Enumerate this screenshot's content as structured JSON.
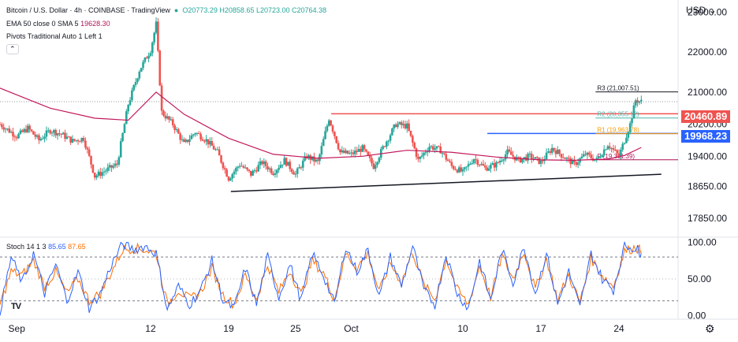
{
  "header": {
    "symbol": "Bitcoin / U.S. Dollar · 4h · COINBASE · TradingView",
    "ohlc": "O20773.29 H20858.65 L20723.00 C20764.38",
    "ema": "EMA 50 close 0 SMA 5",
    "ema_value": "19628.30",
    "pivots": "Pivots Traditional Auto 1 Left 1",
    "stoch_label": "Stoch 14 1 3",
    "stoch_k": "85.65",
    "stoch_d": "87.65",
    "currency": "USD",
    "logo": "TV"
  },
  "colors": {
    "up": "#26a69a",
    "down": "#ef5350",
    "ema": "#c2185b",
    "r2": "#ef5350",
    "r1": "#2962ff",
    "stoch_k": "#2962ff",
    "stoch_d": "#ff6d00"
  },
  "chart_data": [
    {
      "type": "candlestick",
      "title": "Bitcoin / U.S. Dollar · 4h · COINBASE",
      "ylim": [
        17400,
        23300
      ],
      "y_ticks": [
        "23000.00",
        "22000.00",
        "21000.00",
        "20200.00",
        "19400.00",
        "18650.00",
        "17850.00"
      ],
      "y_tick_values": [
        23000,
        22000,
        21000,
        20200,
        19400,
        18650,
        17850
      ],
      "x_ticks": [
        "Sep",
        "12",
        "19",
        "25",
        "Oct",
        "10",
        "17",
        "24"
      ],
      "x_tick_days": [
        0,
        12,
        19,
        25,
        30,
        40,
        47,
        54
      ],
      "x_range_days": [
        -1.5,
        59.3
      ],
      "pivot_levels": [
        {
          "label": "R3",
          "value": "21,007.51",
          "y": 21007.51,
          "from": 51.9
        },
        {
          "label": "R2",
          "value": "20,355.12",
          "y": 20355.12,
          "from": 51.9
        },
        {
          "label": "R1",
          "value": "19,963.78",
          "y": 19963.78,
          "from": 51.9
        },
        {
          "label": "P",
          "value": "19,311.39",
          "y": 19311.39,
          "from": 51.9
        }
      ],
      "price_badges": [
        {
          "value": "20460.89",
          "y": 20460.89,
          "color": "#ef5350"
        },
        {
          "value": "19968.23",
          "y": 19968.23,
          "color": "#2962ff"
        }
      ],
      "horizontal_lines": [
        {
          "y": 20460,
          "from": 28.2,
          "to": 59.3,
          "color": "#ef5350"
        },
        {
          "y": 19968,
          "from": 42.2,
          "to": 59.3,
          "color": "#2962ff"
        }
      ],
      "dotted_price_line": 20764,
      "trendline": {
        "from": [
          19.2,
          18520
        ],
        "to": [
          57.8,
          18950
        ]
      },
      "path_days": [
        -1.5,
        0,
        1,
        2,
        3,
        4,
        5,
        6,
        7,
        8,
        9,
        10,
        11,
        12,
        12.5,
        13,
        14,
        15,
        16,
        17,
        18,
        19,
        20,
        21,
        22,
        23,
        24,
        25,
        26,
        27,
        28,
        29,
        30,
        31,
        32,
        33,
        34,
        35,
        36,
        37,
        38,
        39,
        40,
        41,
        42,
        43,
        44,
        45,
        46,
        47,
        48,
        49,
        50,
        51,
        52,
        53,
        54,
        55,
        55.5,
        56
      ],
      "path_close": [
        20200,
        19900,
        20100,
        19800,
        20050,
        19950,
        19780,
        19850,
        18900,
        19050,
        19200,
        20700,
        21550,
        22050,
        22700,
        20500,
        20200,
        19700,
        20000,
        19800,
        19500,
        18850,
        19200,
        18950,
        19250,
        19000,
        19300,
        18950,
        19400,
        19250,
        20350,
        19500,
        19450,
        19600,
        19150,
        19700,
        20200,
        20150,
        19300,
        19650,
        19550,
        19150,
        19000,
        19350,
        19100,
        19200,
        19500,
        19300,
        19400,
        19250,
        19600,
        19400,
        19200,
        19450,
        19300,
        19700,
        19400,
        20200,
        20800,
        20764
      ],
      "ema_days": [
        -1.5,
        3,
        7,
        10,
        12.5,
        15,
        19,
        23,
        27,
        31,
        35,
        39,
        43,
        47,
        50,
        53,
        54.5,
        56
      ],
      "ema_values": [
        21100,
        20600,
        20350,
        20300,
        21000,
        20450,
        19850,
        19450,
        19350,
        19400,
        19550,
        19500,
        19380,
        19310,
        19300,
        19330,
        19420,
        19620
      ]
    },
    {
      "type": "line",
      "title": "Stoch 14 1 3",
      "series": [
        {
          "name": "85.65",
          "color": "#2962ff"
        },
        {
          "name": "87.65",
          "color": "#ff6d00"
        }
      ],
      "ylim": [
        -5,
        106
      ],
      "y_ticks": [
        "100.00",
        "50.00",
        "0.00"
      ],
      "y_tick_values": [
        100,
        50,
        0
      ],
      "bands": [
        80,
        20
      ],
      "x": [
        -1.5,
        -0.5,
        0.5,
        1.5,
        2.5,
        3.5,
        4.5,
        5.5,
        6.5,
        7.5,
        8.5,
        9.5,
        10.5,
        11.5,
        12.5,
        13.5,
        14.5,
        15.5,
        16.5,
        17.5,
        18.5,
        19.5,
        20.5,
        21.5,
        22.5,
        23.5,
        24.5,
        25.5,
        26.5,
        27.5,
        28.5,
        29.5,
        30.5,
        31.5,
        32.5,
        33.5,
        34.5,
        35.5,
        36.5,
        37.5,
        38.5,
        39.5,
        40.5,
        41.5,
        42.5,
        43.5,
        44.5,
        45.5,
        46.5,
        47.5,
        48.5,
        49.5,
        50.5,
        51.5,
        52.5,
        53.5,
        54.5,
        55.5,
        56
      ],
      "k": [
        5,
        80,
        45,
        85,
        30,
        70,
        20,
        60,
        10,
        30,
        70,
        98,
        90,
        95,
        85,
        8,
        40,
        15,
        35,
        75,
        20,
        10,
        65,
        15,
        80,
        25,
        70,
        20,
        85,
        55,
        15,
        95,
        60,
        90,
        25,
        80,
        40,
        95,
        35,
        15,
        85,
        30,
        10,
        75,
        20,
        90,
        45,
        95,
        30,
        85,
        15,
        60,
        10,
        85,
        50,
        35,
        95,
        92,
        86
      ],
      "d": [
        15,
        60,
        55,
        75,
        40,
        60,
        30,
        50,
        20,
        30,
        60,
        90,
        92,
        90,
        85,
        15,
        35,
        22,
        32,
        65,
        28,
        15,
        55,
        22,
        70,
        32,
        62,
        28,
        75,
        58,
        22,
        85,
        65,
        85,
        32,
        72,
        45,
        88,
        42,
        22,
        78,
        35,
        15,
        68,
        25,
        82,
        50,
        88,
        35,
        78,
        22,
        55,
        18,
        78,
        55,
        40,
        88,
        93,
        88
      ]
    }
  ]
}
